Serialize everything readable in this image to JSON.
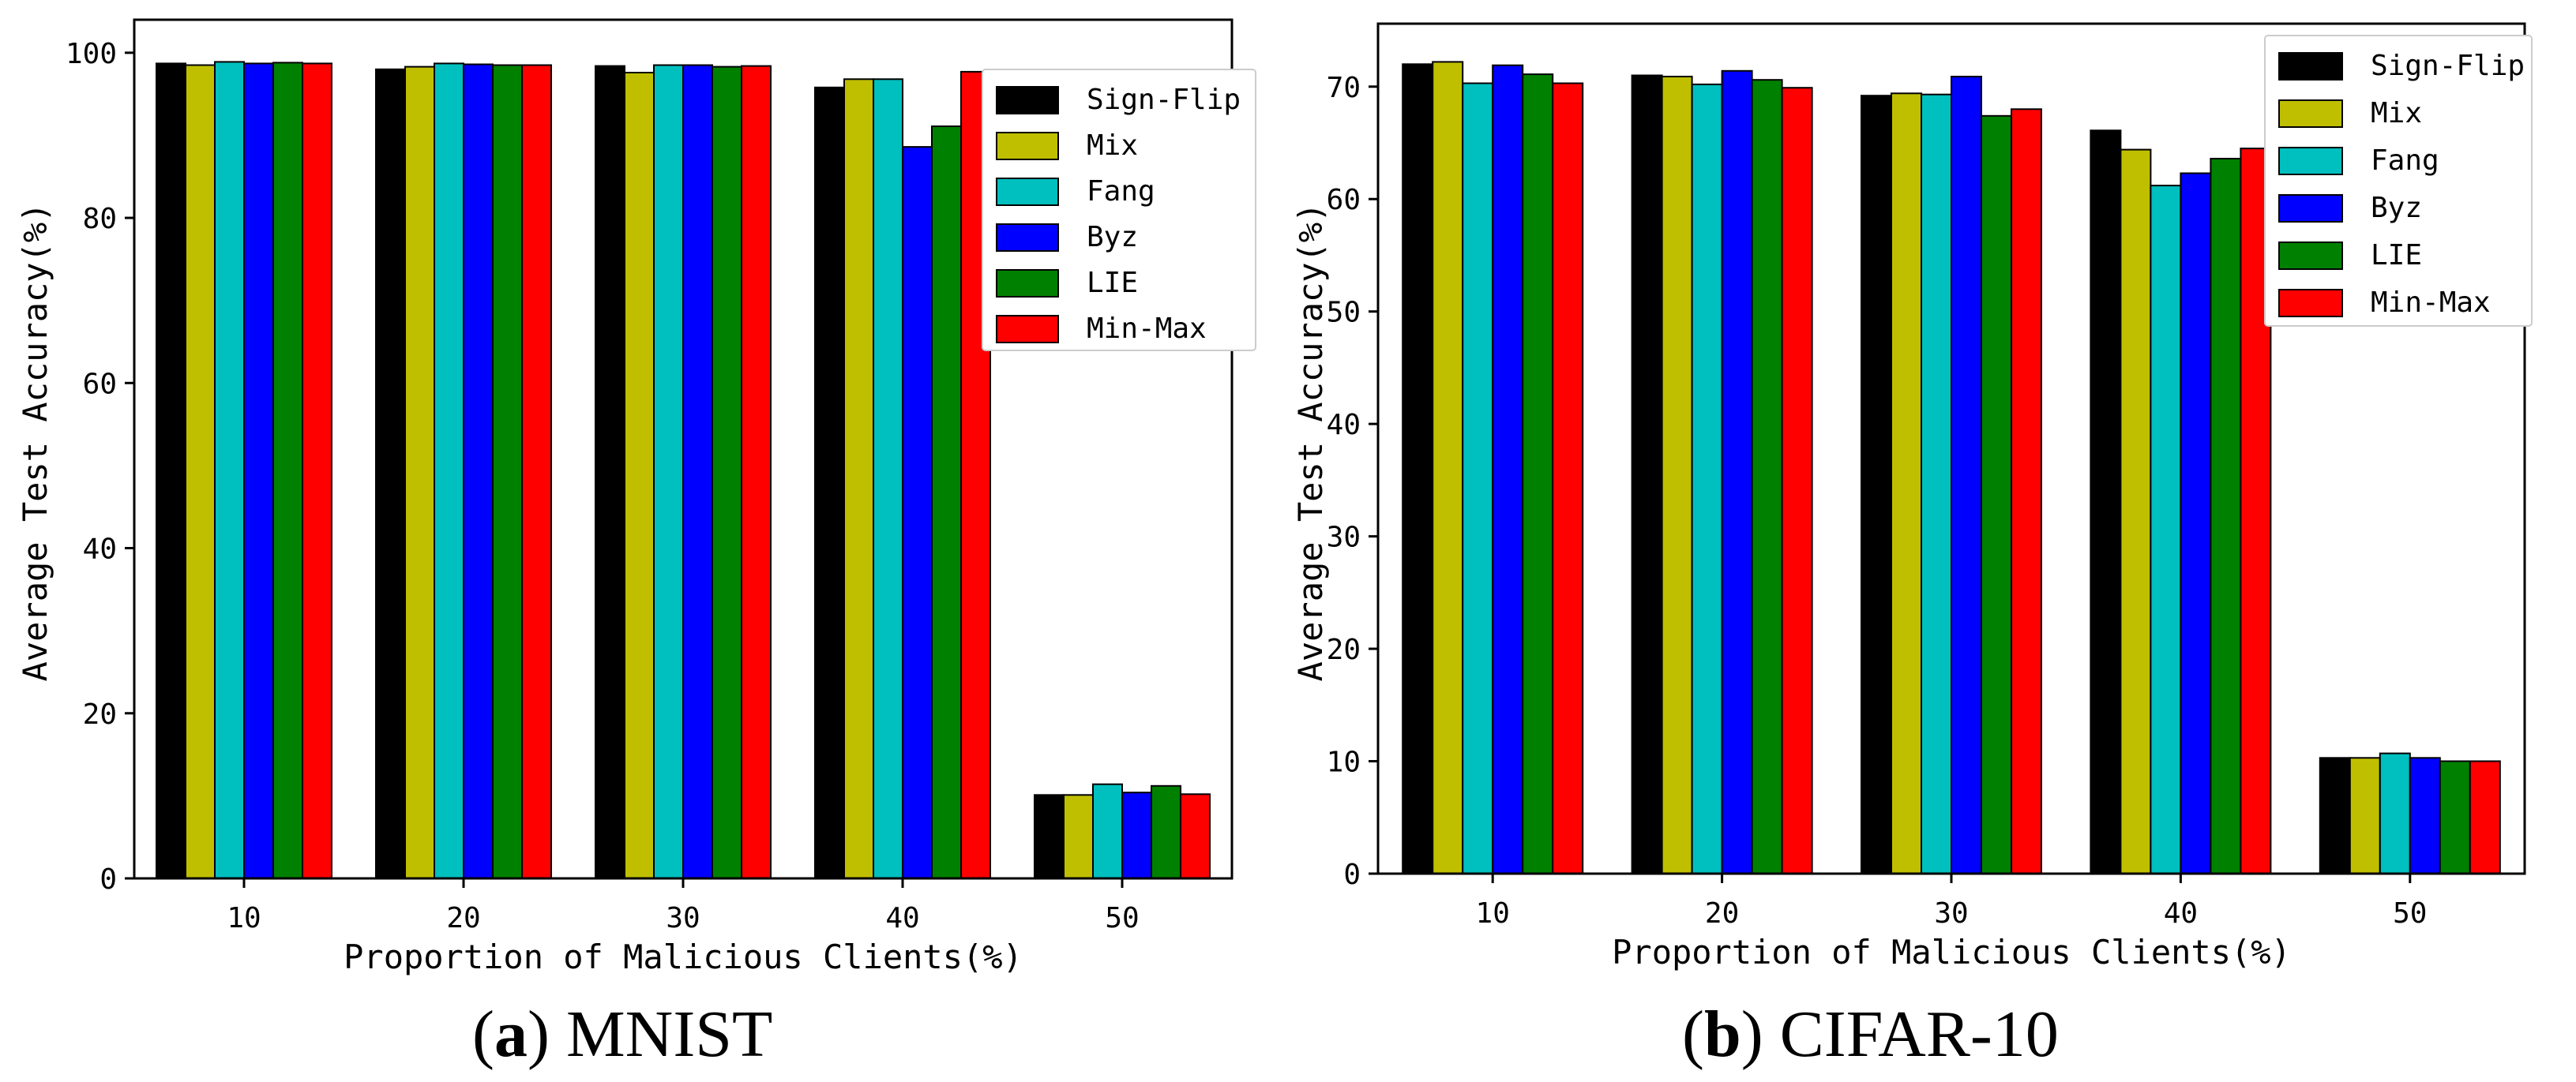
{
  "chart_data": [
    {
      "type": "bar",
      "panel": "a",
      "caption_letter": "a",
      "caption_text": "MNIST",
      "xlabel": "Proportion of Malicious Clients(%)",
      "ylabel": "Average Test Accuracy(%)",
      "ylim": [
        0,
        104
      ],
      "yticks": [
        0,
        20,
        40,
        60,
        80,
        100
      ],
      "categories": [
        "10",
        "20",
        "30",
        "40",
        "50"
      ],
      "legend_position": "top-right",
      "series": [
        {
          "name": "Sign-Flip",
          "color": "#000000",
          "values": [
            98.7,
            98.0,
            98.4,
            95.8,
            10.1
          ]
        },
        {
          "name": "Mix",
          "color": "#bfbf00",
          "values": [
            98.5,
            98.3,
            97.6,
            96.8,
            10.1
          ]
        },
        {
          "name": "Fang",
          "color": "#00bfbf",
          "values": [
            98.9,
            98.7,
            98.5,
            96.8,
            11.4
          ]
        },
        {
          "name": "Byz",
          "color": "#0000ff",
          "values": [
            98.7,
            98.6,
            98.5,
            88.6,
            10.4
          ]
        },
        {
          "name": "LIE",
          "color": "#008000",
          "values": [
            98.8,
            98.5,
            98.3,
            91.1,
            11.2
          ]
        },
        {
          "name": "Min-Max",
          "color": "#ff0000",
          "values": [
            98.7,
            98.5,
            98.4,
            97.7,
            10.2
          ]
        }
      ]
    },
    {
      "type": "bar",
      "panel": "b",
      "caption_letter": "b",
      "caption_text": "CIFAR-10",
      "xlabel": "Proportion of Malicious Clients(%)",
      "ylabel": "Average Test Accuracy(%)",
      "ylim": [
        0,
        75.6
      ],
      "yticks": [
        0,
        10,
        20,
        30,
        40,
        50,
        60,
        70
      ],
      "categories": [
        "10",
        "20",
        "30",
        "40",
        "50"
      ],
      "legend_position": "top-right",
      "series": [
        {
          "name": "Sign-Flip",
          "color": "#000000",
          "values": [
            72.0,
            71.0,
            69.2,
            66.1,
            10.3
          ]
        },
        {
          "name": "Mix",
          "color": "#bfbf00",
          "values": [
            72.2,
            70.9,
            69.4,
            64.4,
            10.3
          ]
        },
        {
          "name": "Fang",
          "color": "#00bfbf",
          "values": [
            70.3,
            70.2,
            69.3,
            61.2,
            10.7
          ]
        },
        {
          "name": "Byz",
          "color": "#0000ff",
          "values": [
            71.9,
            71.4,
            70.9,
            62.3,
            10.3
          ]
        },
        {
          "name": "LIE",
          "color": "#008000",
          "values": [
            71.1,
            70.6,
            67.4,
            63.6,
            10.0
          ]
        },
        {
          "name": "Min-Max",
          "color": "#ff0000",
          "values": [
            70.3,
            69.9,
            68.0,
            64.5,
            10.0
          ]
        }
      ]
    }
  ]
}
